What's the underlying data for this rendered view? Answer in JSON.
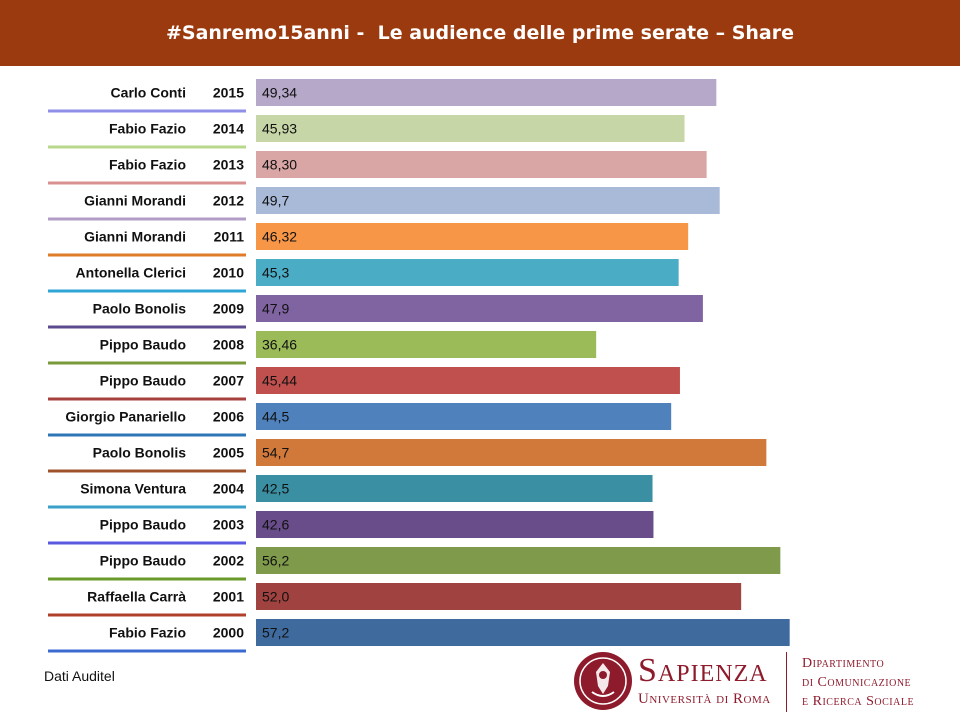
{
  "title": "#Sanremo15anni -  Le audience delle prime serate – Share",
  "source_note": "Dati Auditel",
  "logo": {
    "name": "Sapienza",
    "subtitle": "Università di Roma",
    "department": [
      "Dipartimento",
      "di Comunicazione",
      "e Ricerca Sociale"
    ],
    "seal_text": "Studium Urbis"
  },
  "chart_data": {
    "type": "bar",
    "orientation": "horizontal",
    "title": "#Sanremo15anni -  Le audience delle prime serate – Share",
    "xlim": [
      0,
      60
    ],
    "grid": false,
    "rows": [
      {
        "host": "Carlo Conti",
        "year": "2015",
        "value": 49.34,
        "label": "49,34",
        "color": "#b5a8c9",
        "line_color": "#8f8fe8"
      },
      {
        "host": "Fabio Fazio",
        "year": "2014",
        "value": 45.93,
        "label": "45,93",
        "color": "#c6d6a7",
        "line_color": "#b8d88c"
      },
      {
        "host": "Fabio Fazio",
        "year": "2013",
        "value": 48.3,
        "label": "48,30",
        "color": "#d9a5a5",
        "line_color": "#d99090"
      },
      {
        "host": "Gianni Morandi",
        "year": "2012",
        "value": 49.7,
        "label": "49,7",
        "color": "#a9b9d8",
        "line_color": "#b09cc6"
      },
      {
        "host": "Gianni Morandi",
        "year": "2011",
        "value": 46.32,
        "label": "46,32",
        "color": "#f79646",
        "line_color": "#e07c28"
      },
      {
        "host": "Antonella Clerici",
        "year": "2010",
        "value": 45.3,
        "label": "45,3",
        "color": "#4bacc6",
        "line_color": "#2fa6d6"
      },
      {
        "host": "Paolo Bonolis",
        "year": "2009",
        "value": 47.9,
        "label": "47,9",
        "color": "#8064a2",
        "line_color": "#5b4a8e"
      },
      {
        "host": "Pippo Baudo",
        "year": "2008",
        "value": 36.46,
        "label": "36,46",
        "color": "#9bbb59",
        "line_color": "#7a9a3a"
      },
      {
        "host": "Pippo Baudo",
        "year": "2007",
        "value": 45.44,
        "label": "45,44",
        "color": "#c0504d",
        "line_color": "#a8403d"
      },
      {
        "host": "Giorgio Panariello",
        "year": "2006",
        "value": 44.5,
        "label": "44,5",
        "color": "#4f81bd",
        "line_color": "#2e75b6"
      },
      {
        "host": "Paolo Bonolis",
        "year": "2005",
        "value": 54.7,
        "label": "54,7",
        "color": "#d0793a",
        "line_color": "#a0522d"
      },
      {
        "host": "Simona Ventura",
        "year": "2004",
        "value": 42.5,
        "label": "42,5",
        "color": "#3a8fa3",
        "line_color": "#3aa0c8"
      },
      {
        "host": "Pippo Baudo",
        "year": "2003",
        "value": 42.6,
        "label": "42,6",
        "color": "#694d8a",
        "line_color": "#5a5ae0"
      },
      {
        "host": "Pippo Baudo",
        "year": "2002",
        "value": 56.2,
        "label": "56,2",
        "color": "#7f9a4a",
        "line_color": "#6a9a2a"
      },
      {
        "host": "Raffaella Carrà",
        "year": "2001",
        "value": 52.0,
        "label": "52,0",
        "color": "#a0423f",
        "line_color": "#b0402a"
      },
      {
        "host": "Fabio Fazio",
        "year": "2000",
        "value": 57.2,
        "label": "57,2",
        "color": "#3e6a9e",
        "line_color": "#3a6ad0"
      }
    ]
  }
}
